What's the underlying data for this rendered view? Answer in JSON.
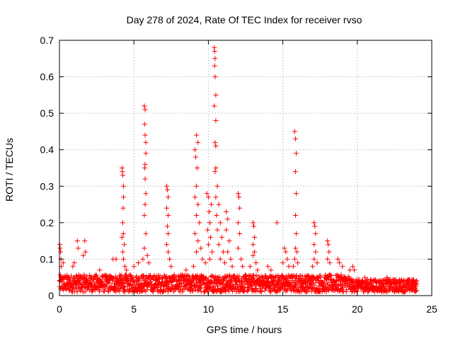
{
  "chart_data": {
    "type": "scatter",
    "title": "Day 278 of 2024, Rate Of TEC Index for receiver rvso",
    "xlabel": "GPS time / hours",
    "ylabel": "ROTI / TECUs",
    "xlim": [
      0,
      25
    ],
    "ylim": [
      0,
      0.7
    ],
    "xticks": [
      0,
      5,
      10,
      15,
      20,
      25
    ],
    "yticks": [
      0,
      0.1,
      0.2,
      0.3,
      0.4,
      0.5,
      0.6,
      0.7
    ],
    "grid": true,
    "marker": "+",
    "marker_color": "#ff0000",
    "background_band": {
      "x_range": [
        0,
        24
      ],
      "low": 0.01,
      "high": 0.045,
      "density": 12
    },
    "series": [
      {
        "name": "ROTI",
        "points": [
          [
            0.02,
            0.14
          ],
          [
            0.05,
            0.13
          ],
          [
            0.08,
            0.12
          ],
          [
            0.1,
            0.1
          ],
          [
            0.12,
            0.08
          ],
          [
            0.25,
            0.09
          ],
          [
            0.9,
            0.08
          ],
          [
            1.0,
            0.09
          ],
          [
            1.2,
            0.15
          ],
          [
            1.25,
            0.13
          ],
          [
            1.6,
            0.11
          ],
          [
            1.7,
            0.15
          ],
          [
            1.75,
            0.12
          ],
          [
            2.7,
            0.07
          ],
          [
            3.6,
            0.1
          ],
          [
            3.8,
            0.1
          ],
          [
            4.2,
            0.35
          ],
          [
            4.22,
            0.34
          ],
          [
            4.25,
            0.33
          ],
          [
            4.3,
            0.3
          ],
          [
            4.3,
            0.27
          ],
          [
            4.28,
            0.24
          ],
          [
            4.25,
            0.2
          ],
          [
            4.3,
            0.17
          ],
          [
            4.2,
            0.16
          ],
          [
            4.35,
            0.14
          ],
          [
            4.25,
            0.12
          ],
          [
            4.3,
            0.1
          ],
          [
            4.4,
            0.08
          ],
          [
            4.5,
            0.07
          ],
          [
            5.0,
            0.08
          ],
          [
            5.3,
            0.09
          ],
          [
            5.7,
            0.52
          ],
          [
            5.75,
            0.51
          ],
          [
            5.72,
            0.47
          ],
          [
            5.75,
            0.44
          ],
          [
            5.8,
            0.42
          ],
          [
            5.8,
            0.39
          ],
          [
            5.75,
            0.36
          ],
          [
            5.72,
            0.35
          ],
          [
            5.75,
            0.32
          ],
          [
            5.8,
            0.28
          ],
          [
            5.75,
            0.25
          ],
          [
            5.7,
            0.22
          ],
          [
            5.8,
            0.17
          ],
          [
            5.7,
            0.13
          ],
          [
            5.6,
            0.1
          ],
          [
            5.9,
            0.11
          ],
          [
            6.0,
            0.09
          ],
          [
            7.2,
            0.3
          ],
          [
            7.25,
            0.29
          ],
          [
            7.3,
            0.27
          ],
          [
            7.2,
            0.24
          ],
          [
            7.3,
            0.22
          ],
          [
            7.25,
            0.19
          ],
          [
            7.3,
            0.17
          ],
          [
            7.2,
            0.14
          ],
          [
            7.3,
            0.12
          ],
          [
            7.4,
            0.1
          ],
          [
            7.5,
            0.08
          ],
          [
            8.5,
            0.07
          ],
          [
            9.1,
            0.4
          ],
          [
            9.2,
            0.44
          ],
          [
            9.3,
            0.42
          ],
          [
            9.15,
            0.38
          ],
          [
            9.25,
            0.35
          ],
          [
            9.2,
            0.3
          ],
          [
            9.1,
            0.27
          ],
          [
            9.3,
            0.25
          ],
          [
            9.2,
            0.22
          ],
          [
            9.4,
            0.2
          ],
          [
            9.1,
            0.17
          ],
          [
            9.3,
            0.15
          ],
          [
            9.5,
            0.13
          ],
          [
            9.2,
            0.12
          ],
          [
            9.6,
            0.1
          ],
          [
            9.0,
            0.08
          ],
          [
            9.9,
            0.28
          ],
          [
            10.0,
            0.27
          ],
          [
            10.2,
            0.25
          ],
          [
            10.05,
            0.23
          ],
          [
            10.1,
            0.2
          ],
          [
            9.95,
            0.18
          ],
          [
            10.15,
            0.16
          ],
          [
            10.0,
            0.14
          ],
          [
            10.25,
            0.12
          ],
          [
            10.1,
            0.1
          ],
          [
            9.8,
            0.09
          ],
          [
            10.4,
            0.68
          ],
          [
            10.42,
            0.67
          ],
          [
            10.45,
            0.65
          ],
          [
            10.42,
            0.63
          ],
          [
            10.45,
            0.6
          ],
          [
            10.5,
            0.55
          ],
          [
            10.4,
            0.52
          ],
          [
            10.5,
            0.48
          ],
          [
            10.45,
            0.42
          ],
          [
            10.5,
            0.41
          ],
          [
            10.5,
            0.35
          ],
          [
            10.45,
            0.34
          ],
          [
            10.6,
            0.3
          ],
          [
            10.5,
            0.27
          ],
          [
            10.7,
            0.25
          ],
          [
            10.55,
            0.22
          ],
          [
            10.8,
            0.2
          ],
          [
            10.6,
            0.18
          ],
          [
            10.9,
            0.16
          ],
          [
            10.7,
            0.14
          ],
          [
            11.0,
            0.12
          ],
          [
            10.8,
            0.1
          ],
          [
            11.1,
            0.09
          ],
          [
            11.2,
            0.23
          ],
          [
            11.3,
            0.21
          ],
          [
            11.2,
            0.18
          ],
          [
            11.4,
            0.15
          ],
          [
            11.3,
            0.12
          ],
          [
            11.5,
            0.1
          ],
          [
            11.6,
            0.08
          ],
          [
            12.0,
            0.28
          ],
          [
            12.05,
            0.27
          ],
          [
            12.1,
            0.24
          ],
          [
            12.0,
            0.2
          ],
          [
            12.1,
            0.17
          ],
          [
            12.0,
            0.13
          ],
          [
            12.2,
            0.1
          ],
          [
            12.3,
            0.08
          ],
          [
            13.0,
            0.2
          ],
          [
            13.05,
            0.19
          ],
          [
            13.1,
            0.16
          ],
          [
            13.0,
            0.14
          ],
          [
            13.1,
            0.12
          ],
          [
            13.0,
            0.11
          ],
          [
            13.2,
            0.09
          ],
          [
            12.8,
            0.08
          ],
          [
            13.3,
            0.07
          ],
          [
            14.0,
            0.08
          ],
          [
            14.2,
            0.07
          ],
          [
            14.6,
            0.2
          ],
          [
            15.1,
            0.13
          ],
          [
            15.2,
            0.12
          ],
          [
            15.3,
            0.1
          ],
          [
            15.0,
            0.09
          ],
          [
            15.4,
            0.08
          ],
          [
            15.8,
            0.45
          ],
          [
            15.85,
            0.43
          ],
          [
            15.9,
            0.39
          ],
          [
            15.85,
            0.34
          ],
          [
            15.9,
            0.28
          ],
          [
            15.85,
            0.22
          ],
          [
            15.9,
            0.17
          ],
          [
            15.85,
            0.13
          ],
          [
            15.95,
            0.12
          ],
          [
            15.8,
            0.1
          ],
          [
            16.0,
            0.09
          ],
          [
            15.7,
            0.08
          ],
          [
            17.1,
            0.2
          ],
          [
            17.15,
            0.19
          ],
          [
            17.2,
            0.17
          ],
          [
            17.1,
            0.14
          ],
          [
            17.2,
            0.12
          ],
          [
            17.1,
            0.1
          ],
          [
            17.3,
            0.09
          ],
          [
            17.0,
            0.08
          ],
          [
            18.0,
            0.15
          ],
          [
            18.05,
            0.14
          ],
          [
            18.1,
            0.12
          ],
          [
            18.0,
            0.1
          ],
          [
            18.15,
            0.09
          ],
          [
            18.7,
            0.1
          ],
          [
            18.8,
            0.09
          ],
          [
            19.0,
            0.08
          ],
          [
            19.5,
            0.07
          ],
          [
            19.7,
            0.08
          ],
          [
            19.8,
            0.07
          ],
          [
            20.5,
            0.05
          ],
          [
            22.0,
            0.05
          ],
          [
            23.5,
            0.04
          ]
        ]
      }
    ]
  }
}
